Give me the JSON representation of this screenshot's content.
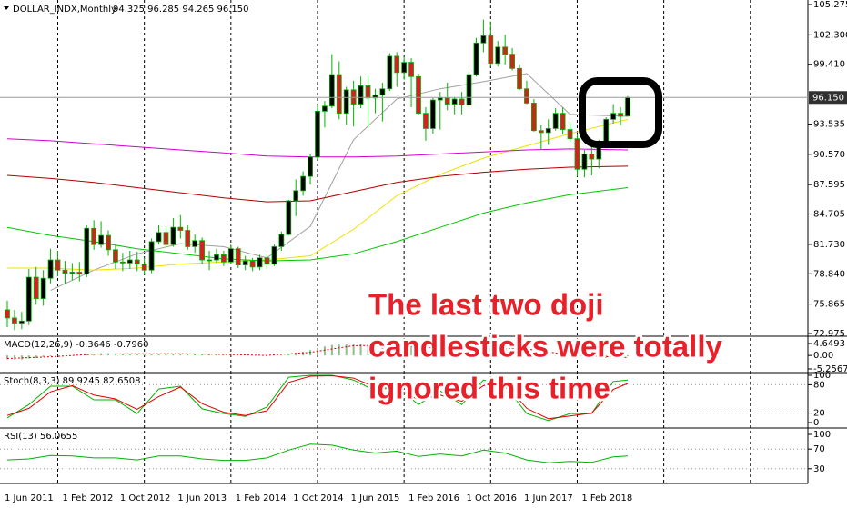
{
  "header": {
    "symbol": "DOLLAR_INDX,Monthly",
    "ohlc": "94.325 96.285 94.265 96.150"
  },
  "chart_data": [
    {
      "type": "candlestick",
      "categories": [
        "1 Jun 2011",
        null,
        null,
        null,
        null,
        null,
        null,
        null,
        "1 Feb 2012",
        null,
        null,
        null,
        null,
        null,
        null,
        null,
        "1 Oct 2012",
        null,
        null,
        null,
        null,
        null,
        null,
        null,
        "1 Jun 2013",
        null,
        null,
        null,
        null,
        null,
        null,
        null,
        "1 Feb 2014",
        null,
        null,
        null,
        null,
        null,
        null,
        null,
        "1 Oct 2014",
        null,
        null,
        null,
        null,
        null,
        null,
        null,
        "1 Jun 2015",
        null,
        null,
        null,
        null,
        null,
        null,
        null,
        "1 Feb 2016",
        null,
        null,
        null,
        null,
        null,
        null,
        null,
        "1 Oct 2016",
        null,
        null,
        null,
        null,
        null,
        null,
        null,
        "1 Jun 2017",
        null,
        null,
        null,
        null,
        null,
        null,
        null,
        "1 Feb 2018",
        null,
        null,
        null,
        null,
        null,
        null
      ],
      "open": [
        75.3,
        74.5,
        74.0,
        74.2,
        78.5,
        76.4,
        78.4,
        80.2,
        79.2,
        78.9,
        79.0,
        78.8,
        83.3,
        81.7,
        82.6,
        81.2,
        80.0,
        79.9,
        80.2,
        79.8,
        79.2,
        82.0,
        82.9,
        81.7,
        83.4,
        83.1,
        81.5,
        82.1,
        80.2,
        80.2,
        80.7,
        80.0,
        81.3,
        79.7,
        80.1,
        79.5,
        80.4,
        79.8,
        81.5,
        82.7,
        86.0,
        87.0,
        88.4,
        90.3,
        94.8,
        95.3,
        98.4,
        94.6,
        96.9,
        95.5,
        97.3,
        96.1,
        96.4,
        97.0,
        100.2,
        98.6,
        99.6,
        98.2,
        94.6,
        93.1,
        95.9,
        96.1,
        95.5,
        96.0,
        95.4,
        98.4,
        101.5,
        102.2,
        99.5,
        101.1,
        100.4,
        99.0,
        97.0,
        95.6,
        92.9,
        92.7,
        93.1,
        94.6,
        93.0,
        92.1,
        89.1,
        90.6,
        90.1,
        91.6,
        94.0,
        94.6,
        94.325
      ],
      "high": [
        76.2,
        75.3,
        75.1,
        79.3,
        79.5,
        79.2,
        81.3,
        81.1,
        80.1,
        79.9,
        80.0,
        83.6,
        84.1,
        84.0,
        83.1,
        81.7,
        80.9,
        81.1,
        81.0,
        80.4,
        82.3,
        83.6,
        83.5,
        84.3,
        84.6,
        83.6,
        82.7,
        82.4,
        81.1,
        81.3,
        81.1,
        81.7,
        81.5,
        80.6,
        80.4,
        80.7,
        80.8,
        81.7,
        83.0,
        86.1,
        88.1,
        88.9,
        90.6,
        95.4,
        95.8,
        100.4,
        99.7,
        97.2,
        97.8,
        98.2,
        98.3,
        97.0,
        97.6,
        100.5,
        100.6,
        100.1,
        100.0,
        98.5,
        95.2,
        96.1,
        96.7,
        97.6,
        96.2,
        96.7,
        98.7,
        102.0,
        103.8,
        103.6,
        101.7,
        102.3,
        101.0,
        99.4,
        97.8,
        96.0,
        93.5,
        94.0,
        95.1,
        95.2,
        93.8,
        92.6,
        91.0,
        91.4,
        92.0,
        94.2,
        95.5,
        95.2,
        96.285
      ],
      "low": [
        73.6,
        73.3,
        73.4,
        73.8,
        75.8,
        75.7,
        77.9,
        78.6,
        77.8,
        78.2,
        78.1,
        78.5,
        81.2,
        81.4,
        80.6,
        79.3,
        79.1,
        79.3,
        79.1,
        78.8,
        78.9,
        81.7,
        81.3,
        81.5,
        82.3,
        81.2,
        80.9,
        79.8,
        79.2,
        79.9,
        79.6,
        79.8,
        79.4,
        79.2,
        79.1,
        79.2,
        79.3,
        79.6,
        81.1,
        82.6,
        84.5,
        86.5,
        87.6,
        90.1,
        93.2,
        95.1,
        94.0,
        93.5,
        93.3,
        95.1,
        93.2,
        94.6,
        93.8,
        96.8,
        97.2,
        97.9,
        95.2,
        94.4,
        91.9,
        92.6,
        93.0,
        94.9,
        94.5,
        94.5,
        95.2,
        98.2,
        100.6,
        99.2,
        99.2,
        99.4,
        98.8,
        96.9,
        95.5,
        92.8,
        91.0,
        91.5,
        92.9,
        92.5,
        91.8,
        88.4,
        88.3,
        88.5,
        89.2,
        91.5,
        93.6,
        93.4,
        94.265
      ],
      "close": [
        74.5,
        74.0,
        74.2,
        78.5,
        76.4,
        78.4,
        80.2,
        79.2,
        78.9,
        79.0,
        78.8,
        83.3,
        81.7,
        82.6,
        81.2,
        80.0,
        79.9,
        80.2,
        79.8,
        79.2,
        82.0,
        82.9,
        81.7,
        83.4,
        83.1,
        81.5,
        82.1,
        80.2,
        80.2,
        80.7,
        80.0,
        81.3,
        79.7,
        80.1,
        79.5,
        80.4,
        79.8,
        81.5,
        82.7,
        86.0,
        87.0,
        88.4,
        90.3,
        94.8,
        95.3,
        98.4,
        94.6,
        96.9,
        95.5,
        97.3,
        96.1,
        96.4,
        97.0,
        100.2,
        98.6,
        99.6,
        98.2,
        94.6,
        93.1,
        95.9,
        96.1,
        95.5,
        96.0,
        95.4,
        98.4,
        101.5,
        102.2,
        99.5,
        101.1,
        100.4,
        99.0,
        97.0,
        95.6,
        92.9,
        92.7,
        93.1,
        94.6,
        93.0,
        92.1,
        89.1,
        90.6,
        90.1,
        91.6,
        94.0,
        94.6,
        94.3,
        96.15
      ],
      "up_color": "#000000",
      "down_color": "#d42020",
      "wick_color": "#00b400",
      "ylim": [
        72.975,
        105.275
      ],
      "yticks": [
        72.975,
        75.865,
        {
          "value": 78.84,
          "label": "78.840"
        },
        {
          "value": 81.73,
          "label": "81.730"
        },
        84.705,
        87.595,
        {
          "value": 90.57,
          "label": "90.570"
        },
        93.535,
        {
          "value": 99.41,
          "label": "99.410"
        },
        {
          "value": 102.3,
          "label": "102.300"
        },
        105.275
      ],
      "price_label": "96.150",
      "lines": [
        {
          "color": "#a0a0a0",
          "x": [
            "1 Dec 2011",
            "1 Jun 2012",
            "1 Dec 2012",
            "1 Jun 2013",
            "1 Dec 2013",
            "1 Jun 2014",
            "1 Dec 2014",
            "1 Jun 2015",
            "1 Dec 2015",
            "1 Jun 2016",
            "1 Dec 2016",
            "1 Jun 2017",
            "1 Dec 2017",
            "1 Aug 2018"
          ],
          "values": [
            77.2,
            79.2,
            80.8,
            81.8,
            81.5,
            80.4,
            83.5,
            92.0,
            96.0,
            97.0,
            97.7,
            98.5,
            94.5,
            94.3
          ]
        },
        {
          "color": "#f0e000",
          "x": [
            "1 Jun 2011",
            "1 Dec 2011",
            "1 Jun 2012",
            "1 Dec 2012",
            "1 Jun 2013",
            "1 Dec 2013",
            "1 Jun 2014",
            "1 Dec 2014",
            "1 Jun 2015",
            "1 Dec 2015",
            "1 Jun 2016",
            "1 Dec 2016",
            "1 Jun 2017",
            "1 Dec 2017",
            "1 Aug 2018"
          ],
          "values": [
            79.4,
            79.4,
            79.2,
            79.4,
            79.8,
            80.0,
            80.2,
            80.6,
            83.2,
            86.5,
            88.6,
            90.2,
            91.4,
            92.6,
            94.0
          ]
        },
        {
          "color": "#b00000",
          "x": [
            "1 Jun 2011",
            "1 Dec 2011",
            "1 Jun 2012",
            "1 Dec 2012",
            "1 Jun 2013",
            "1 Dec 2013",
            "1 Jun 2014",
            "1 Dec 2014",
            "1 Jun 2015",
            "1 Dec 2015",
            "1 Jun 2016",
            "1 Dec 2016",
            "1 Jun 2017",
            "1 Dec 2017",
            "1 Aug 2018"
          ],
          "values": [
            88.5,
            88.2,
            87.8,
            87.3,
            86.8,
            86.3,
            85.9,
            86.0,
            86.9,
            87.8,
            88.4,
            88.8,
            89.1,
            89.3,
            89.4
          ]
        },
        {
          "color": "#d000d0",
          "x": [
            "1 Jun 2011",
            "1 Dec 2011",
            "1 Jun 2012",
            "1 Dec 2012",
            "1 Jun 2013",
            "1 Dec 2013",
            "1 Jun 2014",
            "1 Dec 2014",
            "1 Jun 2015",
            "1 Dec 2015",
            "1 Jun 2016",
            "1 Dec 2016",
            "1 Jun 2017",
            "1 Dec 2017",
            "1 Aug 2018"
          ],
          "values": [
            92.1,
            91.9,
            91.6,
            91.3,
            91.0,
            90.7,
            90.4,
            90.3,
            90.3,
            90.4,
            90.6,
            90.8,
            91.0,
            91.1,
            91.0
          ]
        },
        {
          "color": "#00c800",
          "x": [
            "1 Jun 2011",
            "1 Dec 2011",
            "1 Jun 2012",
            "1 Dec 2012",
            "1 Jun 2013",
            "1 Dec 2013",
            "1 Jun 2014",
            "1 Dec 2014",
            "1 Jun 2015",
            "1 Dec 2015",
            "1 Jun 2016",
            "1 Dec 2016",
            "1 Jun 2017",
            "1 Dec 2017",
            "1 Aug 2018"
          ],
          "values": [
            83.4,
            82.6,
            82.0,
            81.3,
            80.8,
            80.3,
            80.1,
            80.2,
            80.8,
            82.0,
            83.4,
            84.8,
            85.8,
            86.6,
            87.3
          ]
        }
      ],
      "annotation": [
        "The last two doji",
        "candlesticks were totally",
        "ignored this time"
      ],
      "annotation_color": "#e8202a"
    },
    {
      "type": "macd",
      "title": "MACD(12,26,9) -0.3646 -0.7960",
      "values": [
        -1.5,
        -1.6,
        -1.6,
        -1.2,
        -1.0,
        -0.7,
        -0.3,
        -0.1,
        0.0,
        0.1,
        0.1,
        0.5,
        0.7,
        0.9,
        0.9,
        0.8,
        0.7,
        0.6,
        0.5,
        0.4,
        0.5,
        0.6,
        0.6,
        0.7,
        0.8,
        0.7,
        0.7,
        0.5,
        0.4,
        0.3,
        0.2,
        0.2,
        0.1,
        0.0,
        -0.1,
        -0.1,
        -0.2,
        -0.1,
        0.1,
        0.5,
        1.0,
        1.5,
        2.1,
        2.9,
        3.5,
        4.1,
        4.2,
        4.3,
        4.3,
        4.4,
        4.2,
        4.0,
        3.9,
        4.1,
        4.0,
        3.9,
        3.6,
        3.1,
        2.6,
        2.4,
        2.2,
        2.0,
        1.9,
        1.7,
        1.9,
        2.4,
        2.9,
        3.0,
        3.1,
        3.0,
        2.8,
        2.4,
        1.9,
        1.2,
        0.7,
        0.3,
        0.1,
        -0.1,
        -0.3,
        -0.8,
        -1.0,
        -1.2,
        -1.2,
        -1.0,
        -0.7,
        -0.5,
        -0.3646
      ],
      "color": "#8cbf8c",
      "signal": {
        "color": "#e00000",
        "x": [
          "1 Jun 2011",
          "1 Dec 2011",
          "1 Jun 2012",
          "1 Dec 2012",
          "1 Jun 2013",
          "1 Dec 2013",
          "1 Jun 2014",
          "1 Dec 2014",
          "1 Jun 2015",
          "1 Dec 2015",
          "1 Jun 2016",
          "1 Dec 2016",
          "1 Jun 2017",
          "1 Dec 2017",
          "1 Aug 2018"
        ],
        "values": [
          -1.2,
          -0.5,
          0.5,
          0.7,
          0.7,
          0.4,
          0.0,
          1.2,
          3.8,
          4.0,
          2.7,
          2.6,
          2.5,
          0.2,
          -0.796
        ]
      },
      "ylim": [
        -5.2567,
        4.6493
      ],
      "yticks": [
        -5.2567,
        {
          "value": 0,
          "label": "0.00"
        },
        4.6493
      ]
    },
    {
      "type": "stochastic",
      "title": "Stoch(8,3,3) 89.9245 82.6508",
      "series": [
        {
          "color": "#00b400",
          "x": [
            "1 Jun 2011",
            "1 Sep 2011",
            "1 Dec 2011",
            "1 Mar 2012",
            "1 Jun 2012",
            "1 Sep 2012",
            "1 Dec 2012",
            "1 Mar 2013",
            "1 Jun 2013",
            "1 Sep 2013",
            "1 Dec 2013",
            "1 Mar 2014",
            "1 Jun 2014",
            "1 Sep 2014",
            "1 Dec 2014",
            "1 Mar 2015",
            "1 Jun 2015",
            "1 Sep 2015",
            "1 Dec 2015",
            "1 Mar 2016",
            "1 Jun 2016",
            "1 Sep 2016",
            "1 Dec 2016",
            "1 Mar 2017",
            "1 Jun 2017",
            "1 Sep 2017",
            "1 Dec 2017",
            "1 Mar 2018",
            "1 Jun 2018",
            "1 Aug 2018"
          ],
          "values": [
            10,
            38,
            77,
            77,
            48,
            48,
            19,
            71,
            77,
            29,
            19,
            13,
            33,
            96,
            100,
            100,
            90,
            67,
            77,
            38,
            67,
            38,
            90,
            77,
            19,
            4,
            19,
            19,
            87,
            89.9245
          ]
        },
        {
          "color": "#e00000",
          "x": [
            "1 Jun 2011",
            "1 Sep 2011",
            "1 Dec 2011",
            "1 Mar 2012",
            "1 Jun 2012",
            "1 Sep 2012",
            "1 Dec 2012",
            "1 Mar 2013",
            "1 Jun 2013",
            "1 Sep 2013",
            "1 Dec 2013",
            "1 Mar 2014",
            "1 Jun 2014",
            "1 Sep 2014",
            "1 Dec 2014",
            "1 Mar 2015",
            "1 Jun 2015",
            "1 Sep 2015",
            "1 Dec 2015",
            "1 Mar 2016",
            "1 Jun 2016",
            "1 Sep 2016",
            "1 Dec 2016",
            "1 Mar 2017",
            "1 Jun 2017",
            "1 Sep 2017",
            "1 Dec 2017",
            "1 Mar 2018",
            "1 Jun 2018",
            "1 Aug 2018"
          ],
          "values": [
            15,
            30,
            65,
            78,
            58,
            50,
            28,
            55,
            75,
            40,
            22,
            15,
            25,
            85,
            98,
            99,
            94,
            75,
            72,
            48,
            58,
            45,
            78,
            82,
            30,
            8,
            14,
            20,
            70,
            82.6508
          ]
        }
      ],
      "ylim": [
        0,
        100
      ],
      "yticks": [
        0,
        20,
        80,
        100
      ],
      "level_lines": true
    },
    {
      "type": "rsi",
      "title": "RSI(13) 56.0655",
      "series": [
        {
          "color": "#00b400",
          "x": [
            "1 Jun 2011",
            "1 Sep 2011",
            "1 Dec 2011",
            "1 Mar 2012",
            "1 Jun 2012",
            "1 Sep 2012",
            "1 Dec 2012",
            "1 Mar 2013",
            "1 Jun 2013",
            "1 Sep 2013",
            "1 Dec 2013",
            "1 Mar 2014",
            "1 Jun 2014",
            "1 Sep 2014",
            "1 Dec 2014",
            "1 Mar 2015",
            "1 Jun 2015",
            "1 Sep 2015",
            "1 Dec 2015",
            "1 Mar 2016",
            "1 Jun 2016",
            "1 Sep 2016",
            "1 Dec 2016",
            "1 Mar 2017",
            "1 Jun 2017",
            "1 Sep 2017",
            "1 Dec 2017",
            "1 Mar 2018",
            "1 Jun 2018",
            "1 Aug 2018"
          ],
          "values": [
            48,
            50,
            57,
            56,
            52,
            52,
            48,
            56,
            56,
            50,
            47,
            47,
            52,
            68,
            80,
            78,
            68,
            62,
            66,
            55,
            60,
            56,
            68,
            62,
            48,
            42,
            45,
            43,
            54,
            56.0655
          ]
        }
      ],
      "ylim": [
        0,
        100
      ],
      "yticks": [
        30,
        70,
        100
      ],
      "level_lines": true
    }
  ]
}
